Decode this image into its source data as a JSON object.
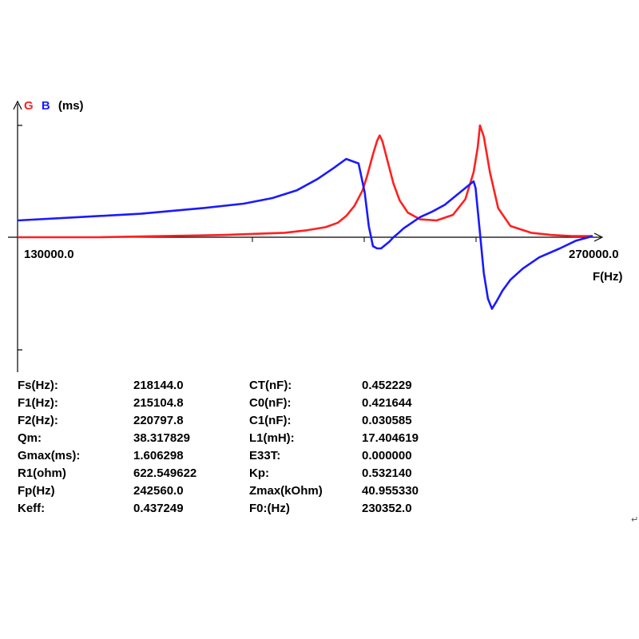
{
  "chart_data": {
    "type": "line",
    "ylabel_parts": [
      "G",
      "B",
      "(ms)"
    ],
    "xlabel": "F(Hz)",
    "x_tick_labels": [
      "130000.0",
      "270000.0"
    ],
    "xlim": [
      130000,
      270000
    ],
    "ylim": [
      -1.0,
      1.0
    ],
    "grid": false,
    "colors": {
      "G": "#ff2020",
      "B": "#1a1aff"
    },
    "series": [
      {
        "name": "G",
        "color": "#ff2020",
        "x": [
          130000,
          150000,
          165000,
          180000,
          195000,
          200000,
          205000,
          208000,
          210000,
          212000,
          214000,
          215100,
          216500,
          217500,
          218144,
          218800,
          220000,
          221500,
          223000,
          225000,
          228000,
          232000,
          236000,
          239000,
          241000,
          242000,
          242560,
          243500,
          245000,
          247000,
          250000,
          255000,
          260000,
          265000,
          270000
        ],
        "y": [
          0.0,
          0.0,
          0.01,
          0.02,
          0.04,
          0.06,
          0.09,
          0.13,
          0.19,
          0.28,
          0.42,
          0.55,
          0.74,
          0.86,
          0.91,
          0.86,
          0.69,
          0.48,
          0.33,
          0.22,
          0.16,
          0.15,
          0.2,
          0.34,
          0.58,
          0.8,
          1.0,
          0.9,
          0.58,
          0.26,
          0.1,
          0.04,
          0.02,
          0.01,
          0.01
        ]
      },
      {
        "name": "B",
        "color": "#1a1aff",
        "x": [
          130000,
          145000,
          160000,
          175000,
          185000,
          192000,
          198000,
          203000,
          207000,
          210000,
          213000,
          214500,
          215500,
          216500,
          217500,
          218500,
          219500,
          220500,
          221500,
          222500,
          224000,
          226000,
          228000,
          231000,
          234000,
          237000,
          240000,
          241000,
          241500,
          242500,
          243500,
          244500,
          245500,
          246500,
          248000,
          250000,
          253000,
          257000,
          262000,
          266000,
          270000
        ],
        "y": [
          0.15,
          0.18,
          0.21,
          0.26,
          0.3,
          0.35,
          0.42,
          0.52,
          0.62,
          0.7,
          0.66,
          0.4,
          0.1,
          -0.08,
          -0.1,
          -0.1,
          -0.07,
          -0.04,
          0.0,
          0.03,
          0.08,
          0.13,
          0.18,
          0.23,
          0.29,
          0.38,
          0.47,
          0.5,
          0.44,
          0.06,
          -0.32,
          -0.55,
          -0.64,
          -0.58,
          -0.48,
          -0.38,
          -0.28,
          -0.18,
          -0.1,
          -0.03,
          0.01
        ]
      }
    ]
  },
  "parameters": [
    {
      "label1": "Fs(Hz):",
      "value1": "218144.0",
      "label2": "CT(nF):",
      "value2": "0.452229"
    },
    {
      "label1": "F1(Hz):",
      "value1": "215104.8",
      "label2": "C0(nF):",
      "value2": "0.421644"
    },
    {
      "label1": "F2(Hz):",
      "value1": "220797.8",
      "label2": "C1(nF):",
      "value2": "0.030585"
    },
    {
      "label1": "Qm:",
      "value1": "38.317829",
      "label2": "L1(mH):",
      "value2": "17.404619"
    },
    {
      "label1": "Gmax(ms):",
      "value1": "1.606298",
      "label2": "E33T:",
      "value2": "0.000000"
    },
    {
      "label1": "R1(ohm)",
      "value1": "622.549622",
      "label2": "Kp:",
      "value2": "0.532140"
    },
    {
      "label1": "Fp(Hz)",
      "value1": "242560.0",
      "label2": "Zmax(kOhm)",
      "value2": "40.955330"
    },
    {
      "label1": "Keff:",
      "value1": "0.437249",
      "label2": "F0:(Hz)",
      "value2": "230352.0"
    }
  ],
  "return_mark": "↵"
}
